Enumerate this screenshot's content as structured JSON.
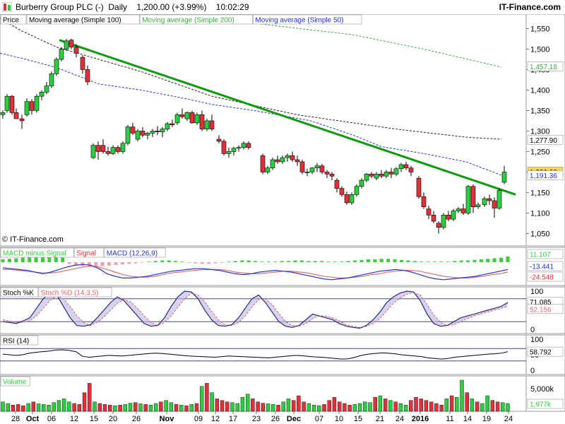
{
  "header": {
    "title": "Burberry Group PLC (-)  Daily    1,200.00 (+3.99%)    10:02:29",
    "brand": "IT-Finance.com"
  },
  "colors": {
    "up": "#2ecc40",
    "down": "#e0303a",
    "trend": "#0a9a0a",
    "ma100": "#222222",
    "ma200": "#3fae3f",
    "ma50": "#2233cc",
    "macd_hist": "#3ecb3e",
    "stochK": "#2a2a70",
    "stochD": "#e0606a",
    "badge_price": "#ffd24a"
  },
  "price_panel": {
    "legend": [
      "Price",
      "Moving average (Simple 100)",
      "Moving average (Simple 200)",
      "Moving average (Simple 50)"
    ],
    "yticks": [
      "1,550",
      "1,500",
      "1,450",
      "1,400",
      "1,350",
      "1,300",
      "1,250",
      "1,200",
      "1,150",
      "1,100",
      "1,050"
    ],
    "badges": {
      "ma200": "1,457.18",
      "ma100": "1,277.90",
      "price": "1,200.00",
      "ma50": "1,191.36"
    },
    "copyright": "© IT-Finance.com"
  },
  "macd_panel": {
    "legend": [
      "MACD minus Signal",
      "Signal",
      "MACD (12,26,9)"
    ],
    "badges": [
      "11.107",
      "-13.441",
      "-24.548"
    ]
  },
  "stoch_panel": {
    "legend": [
      "Stoch %K",
      "Stoch %D (14,3,5)"
    ],
    "yticks": [
      "100",
      "50",
      "0"
    ],
    "badges": [
      "71.085",
      "52.156"
    ]
  },
  "rsi_panel": {
    "legend": [
      "RSI (14)"
    ],
    "yticks": [
      "100",
      "50",
      "0"
    ],
    "badges": [
      "58.792"
    ]
  },
  "volume_panel": {
    "legend": [
      "Volume"
    ],
    "yticks": [
      "5,000k"
    ],
    "badges": [
      "1,977k"
    ]
  },
  "xaxis": {
    "labels": [
      "28",
      "Oct",
      "06",
      "12",
      "15",
      "20",
      "26",
      "Nov",
      "09",
      "12",
      "17",
      "23",
      "26",
      "Dec",
      "07",
      "10",
      "15",
      "21",
      "24",
      "2016",
      "11",
      "14",
      "19",
      "24"
    ],
    "bold": [
      "Oct",
      "Nov",
      "Dec",
      "2016"
    ]
  },
  "chart_data": {
    "type": "candlestick",
    "title": "Burberry Group PLC (-) Daily",
    "ylim": [
      1030,
      1575
    ],
    "ma_series": [
      {
        "name": "Moving average (Simple 100)",
        "values": [
          [
            0,
            1575
          ],
          [
            30,
            1545
          ],
          [
            80,
            1505
          ],
          [
            200,
            1445
          ],
          [
            300,
            1385
          ],
          [
            420,
            1340
          ],
          [
            560,
            1305
          ],
          [
            660,
            1285
          ],
          [
            710,
            1280
          ]
        ]
      },
      {
        "name": "Moving average (Simple 200)",
        "values": [
          [
            300,
            1575
          ],
          [
            500,
            1535
          ],
          [
            600,
            1500
          ],
          [
            710,
            1456
          ]
        ]
      },
      {
        "name": "Moving average (Simple 50)",
        "values": [
          [
            0,
            1490
          ],
          [
            30,
            1478
          ],
          [
            80,
            1455
          ],
          [
            140,
            1415
          ],
          [
            200,
            1400
          ],
          [
            260,
            1380
          ],
          [
            300,
            1365
          ],
          [
            360,
            1350
          ],
          [
            440,
            1325
          ],
          [
            500,
            1290
          ],
          [
            540,
            1262
          ],
          [
            600,
            1245
          ],
          [
            660,
            1225
          ],
          [
            710,
            1192
          ]
        ]
      }
    ],
    "trendline": [
      [
        84,
        1522
      ],
      [
        730,
        1145
      ]
    ],
    "candles": [
      [
        4,
        1340,
        1350,
        1330,
        1345
      ],
      [
        10,
        1350,
        1390,
        1345,
        1385
      ],
      [
        17,
        1385,
        1388,
        1340,
        1345
      ],
      [
        23,
        1345,
        1355,
        1330,
        1330
      ],
      [
        31,
        1330,
        1340,
        1305,
        1325
      ],
      [
        38,
        1340,
        1380,
        1335,
        1372
      ],
      [
        45,
        1372,
        1378,
        1340,
        1350
      ],
      [
        52,
        1350,
        1390,
        1345,
        1385
      ],
      [
        59,
        1385,
        1400,
        1375,
        1395
      ],
      [
        66,
        1395,
        1420,
        1390,
        1410
      ],
      [
        73,
        1410,
        1445,
        1405,
        1440
      ],
      [
        80,
        1440,
        1480,
        1435,
        1475
      ],
      [
        87,
        1475,
        1505,
        1470,
        1500
      ],
      [
        94,
        1500,
        1525,
        1495,
        1520
      ],
      [
        101,
        1522,
        1525,
        1500,
        1505
      ],
      [
        108,
        1505,
        1512,
        1480,
        1490
      ],
      [
        117,
        1480,
        1485,
        1440,
        1450
      ],
      [
        124,
        1450,
        1460,
        1412,
        1420
      ],
      [
        132,
        1235,
        1270,
        1232,
        1265
      ],
      [
        139,
        1265,
        1275,
        1230,
        1250
      ],
      [
        146,
        1265,
        1280,
        1245,
        1250
      ],
      [
        153,
        1250,
        1262,
        1240,
        1245
      ],
      [
        160,
        1245,
        1265,
        1242,
        1260
      ],
      [
        167,
        1260,
        1265,
        1245,
        1250
      ],
      [
        174,
        1250,
        1275,
        1245,
        1270
      ],
      [
        181,
        1270,
        1315,
        1265,
        1310
      ],
      [
        188,
        1310,
        1320,
        1290,
        1295
      ],
      [
        195,
        1280,
        1305,
        1275,
        1300
      ],
      [
        202,
        1300,
        1310,
        1285,
        1290
      ],
      [
        209,
        1290,
        1298,
        1280,
        1295
      ],
      [
        216,
        1295,
        1305,
        1285,
        1300
      ],
      [
        223,
        1300,
        1312,
        1290,
        1298
      ],
      [
        230,
        1298,
        1310,
        1285,
        1305
      ],
      [
        237,
        1305,
        1322,
        1300,
        1318
      ],
      [
        244,
        1318,
        1328,
        1310,
        1315
      ],
      [
        251,
        1320,
        1345,
        1315,
        1340
      ],
      [
        258,
        1340,
        1355,
        1330,
        1335
      ],
      [
        265,
        1330,
        1348,
        1325,
        1345
      ],
      [
        272,
        1345,
        1350,
        1318,
        1320
      ],
      [
        279,
        1320,
        1345,
        1315,
        1340
      ],
      [
        286,
        1340,
        1350,
        1300,
        1305
      ],
      [
        293,
        1305,
        1330,
        1300,
        1325
      ],
      [
        300,
        1325,
        1340,
        1300,
        1305
      ],
      [
        310,
        1280,
        1290,
        1270,
        1275
      ],
      [
        317,
        1275,
        1280,
        1240,
        1245
      ],
      [
        324,
        1245,
        1260,
        1235,
        1250
      ],
      [
        331,
        1250,
        1262,
        1240,
        1258
      ],
      [
        338,
        1258,
        1265,
        1250,
        1260
      ],
      [
        345,
        1260,
        1275,
        1255,
        1270
      ],
      [
        352,
        1270,
        1275,
        1255,
        1260
      ],
      [
        372,
        1240,
        1245,
        1195,
        1200
      ],
      [
        379,
        1200,
        1215,
        1195,
        1210
      ],
      [
        386,
        1210,
        1235,
        1205,
        1230
      ],
      [
        393,
        1230,
        1240,
        1220,
        1225
      ],
      [
        400,
        1225,
        1240,
        1220,
        1235
      ],
      [
        407,
        1235,
        1245,
        1225,
        1240
      ],
      [
        414,
        1240,
        1250,
        1225,
        1230
      ],
      [
        421,
        1230,
        1240,
        1215,
        1225
      ],
      [
        428,
        1225,
        1230,
        1195,
        1200
      ],
      [
        435,
        1200,
        1208,
        1190,
        1200
      ],
      [
        442,
        1200,
        1212,
        1195,
        1210
      ],
      [
        449,
        1210,
        1222,
        1200,
        1215
      ],
      [
        456,
        1215,
        1220,
        1195,
        1200
      ],
      [
        463,
        1200,
        1205,
        1185,
        1195
      ],
      [
        470,
        1195,
        1200,
        1180,
        1190
      ],
      [
        477,
        1180,
        1185,
        1150,
        1160
      ],
      [
        484,
        1160,
        1165,
        1140,
        1145
      ],
      [
        491,
        1145,
        1152,
        1120,
        1125
      ],
      [
        498,
        1125,
        1150,
        1120,
        1145
      ],
      [
        505,
        1145,
        1170,
        1140,
        1165
      ],
      [
        512,
        1165,
        1185,
        1160,
        1180
      ],
      [
        519,
        1180,
        1198,
        1175,
        1195
      ],
      [
        526,
        1195,
        1200,
        1185,
        1190
      ],
      [
        533,
        1185,
        1200,
        1180,
        1195
      ],
      [
        540,
        1195,
        1205,
        1185,
        1190
      ],
      [
        547,
        1190,
        1205,
        1185,
        1200
      ],
      [
        554,
        1200,
        1210,
        1185,
        1195
      ],
      [
        561,
        1195,
        1212,
        1190,
        1208
      ],
      [
        568,
        1208,
        1222,
        1200,
        1218
      ],
      [
        575,
        1218,
        1225,
        1205,
        1210
      ],
      [
        582,
        1210,
        1215,
        1190,
        1200
      ],
      [
        593,
        1185,
        1190,
        1135,
        1140
      ],
      [
        600,
        1140,
        1150,
        1110,
        1115
      ],
      [
        607,
        1110,
        1118,
        1085,
        1095
      ],
      [
        614,
        1095,
        1105,
        1075,
        1080
      ],
      [
        621,
        1075,
        1080,
        1050,
        1065
      ],
      [
        628,
        1065,
        1100,
        1060,
        1095
      ],
      [
        635,
        1095,
        1105,
        1080,
        1085
      ],
      [
        642,
        1085,
        1110,
        1080,
        1105
      ],
      [
        649,
        1105,
        1115,
        1100,
        1110
      ],
      [
        656,
        1110,
        1122,
        1095,
        1100
      ],
      [
        663,
        1100,
        1168,
        1095,
        1165
      ],
      [
        670,
        1165,
        1170,
        1100,
        1115
      ],
      [
        677,
        1115,
        1125,
        1110,
        1120
      ],
      [
        686,
        1120,
        1140,
        1115,
        1135
      ],
      [
        693,
        1135,
        1145,
        1120,
        1130
      ],
      [
        700,
        1130,
        1138,
        1088,
        1112
      ],
      [
        707,
        1112,
        1160,
        1108,
        1155
      ],
      [
        714,
        1175,
        1215,
        1170,
        1200
      ]
    ],
    "macd_hist": [
      0.5,
      0.6,
      0.7,
      0.8,
      0.9,
      1.0,
      1.0,
      1.0,
      0.9,
      0.8,
      -0.3,
      -0.5,
      -0.7,
      -0.8,
      -0.8,
      -0.7,
      -0.6,
      -0.5,
      -0.4,
      -0.3,
      -0.2,
      -0.1,
      0.1,
      0.2,
      0.3,
      0.3,
      0.2,
      0.1,
      -0.1,
      -0.2,
      -0.3,
      -0.3,
      -0.2,
      -0.1,
      0.1,
      0.2,
      0.3,
      0.3,
      0.2,
      0.1,
      0.1,
      0.1,
      0.2,
      0.2,
      0.3,
      0.3,
      0.2,
      0.2,
      0.2,
      0.1,
      0.1,
      0.1,
      0.2,
      0.3,
      0.4,
      0.5,
      0.5,
      0.6,
      0.6,
      0.5,
      0.4,
      0.3,
      0.2,
      0.1,
      0.1,
      0.1,
      0.1,
      0.1,
      0.2,
      0.3,
      0.3,
      0.4,
      0.5,
      0.6,
      0.7,
      0.8,
      1.0
    ],
    "macd_line": [
      0.5,
      0.4,
      0.3,
      0.2,
      0.0,
      -0.2,
      0.0,
      0.3,
      0.6,
      0.8,
      0.9,
      0.8,
      0.4,
      -0.2,
      -0.5,
      -0.7,
      -0.7,
      -0.6,
      -0.5,
      -0.3,
      -0.1,
      0.1,
      0.2,
      0.3,
      0.4,
      0.4,
      0.3,
      0.2,
      0.0,
      -0.2,
      -0.3,
      -0.2,
      0.0,
      0.1,
      0.2,
      0.1,
      0.0,
      -0.2,
      -0.4,
      -0.6,
      -0.8,
      -0.9,
      -0.8,
      -0.7,
      -0.5,
      -0.3,
      -0.1,
      0.1,
      0.2,
      0.3,
      0.2,
      0.0,
      -0.3,
      -0.6,
      -0.8,
      -0.9,
      -0.8,
      -0.7,
      -0.6,
      -0.5,
      -0.3,
      -0.1,
      0.1,
      0.3
    ],
    "signal_line": [
      0.3,
      0.3,
      0.2,
      0.1,
      0.0,
      -0.1,
      -0.1,
      0.0,
      0.2,
      0.4,
      0.6,
      0.7,
      0.6,
      0.3,
      0.0,
      -0.3,
      -0.5,
      -0.6,
      -0.6,
      -0.5,
      -0.3,
      -0.1,
      0.0,
      0.1,
      0.2,
      0.3,
      0.3,
      0.3,
      0.2,
      0.0,
      -0.1,
      -0.2,
      -0.2,
      -0.1,
      0.0,
      0.1,
      0.1,
      0.0,
      -0.1,
      -0.3,
      -0.5,
      -0.6,
      -0.7,
      -0.7,
      -0.6,
      -0.5,
      -0.3,
      -0.2,
      0.0,
      0.1,
      0.2,
      0.2,
      0.1,
      -0.1,
      -0.3,
      -0.5,
      -0.6,
      -0.7,
      -0.7,
      -0.6,
      -0.5,
      -0.3,
      -0.2,
      0.0
    ],
    "stoch_k": [
      20,
      18,
      15,
      22,
      30,
      55,
      80,
      95,
      90,
      60,
      30,
      10,
      8,
      12,
      30,
      50,
      70,
      85,
      75,
      55,
      35,
      15,
      8,
      10,
      30,
      60,
      85,
      100,
      98,
      80,
      50,
      25,
      10,
      8,
      12,
      30,
      55,
      80,
      90,
      70,
      45,
      20,
      8,
      5,
      10,
      25,
      40,
      35,
      30,
      25,
      15,
      8,
      5,
      3,
      10,
      25,
      45,
      70,
      85,
      95,
      100,
      98,
      75,
      40,
      15,
      8,
      10,
      20,
      30,
      35,
      40,
      45,
      50,
      55,
      60,
      70
    ],
    "stoch_d": [
      25,
      22,
      18,
      18,
      22,
      35,
      55,
      75,
      88,
      80,
      60,
      35,
      18,
      10,
      18,
      32,
      50,
      68,
      78,
      72,
      55,
      35,
      18,
      10,
      18,
      35,
      58,
      80,
      95,
      90,
      72,
      48,
      25,
      12,
      10,
      18,
      35,
      58,
      78,
      80,
      65,
      42,
      20,
      10,
      8,
      15,
      28,
      35,
      35,
      30,
      22,
      12,
      8,
      5,
      8,
      15,
      28,
      48,
      68,
      82,
      92,
      96,
      90,
      65,
      38,
      18,
      10,
      12,
      20,
      28,
      35,
      40,
      45,
      50,
      55,
      60
    ],
    "rsi": [
      52,
      50,
      48,
      50,
      55,
      58,
      60,
      62,
      65,
      66,
      64,
      60,
      45,
      42,
      44,
      46,
      48,
      47,
      46,
      48,
      50,
      52,
      54,
      55,
      54,
      52,
      50,
      48,
      46,
      45,
      44,
      43,
      42,
      44,
      46,
      45,
      44,
      43,
      42,
      41,
      40,
      42,
      44,
      46,
      48,
      47,
      45,
      43,
      42,
      40,
      38,
      36,
      37,
      42,
      48,
      52,
      54,
      56,
      55,
      53,
      50,
      48,
      46,
      44,
      40,
      38,
      36,
      38,
      42,
      44,
      46,
      48,
      50,
      52,
      53,
      55,
      60
    ],
    "volume": [
      30,
      25,
      20,
      22,
      18,
      25,
      30,
      24,
      22,
      20,
      28,
      35,
      40,
      30,
      25,
      22,
      60,
      90,
      30,
      25,
      22,
      20,
      18,
      20,
      22,
      26,
      28,
      24,
      22,
      20,
      25,
      30,
      35,
      28,
      22,
      20,
      18,
      22,
      25,
      80,
      90,
      60,
      40,
      35,
      30,
      28,
      25,
      45,
      55,
      40,
      30,
      26,
      24,
      22,
      20,
      30,
      40,
      35,
      50,
      30,
      25,
      20,
      18,
      22,
      35,
      45,
      30,
      25,
      20,
      22,
      25,
      30,
      28,
      45,
      50,
      40,
      35,
      30,
      25,
      20,
      35,
      45,
      40,
      35,
      30,
      25,
      20,
      40,
      50,
      45,
      100,
      60,
      40,
      30,
      25,
      50,
      35,
      30,
      28,
      25
    ]
  }
}
